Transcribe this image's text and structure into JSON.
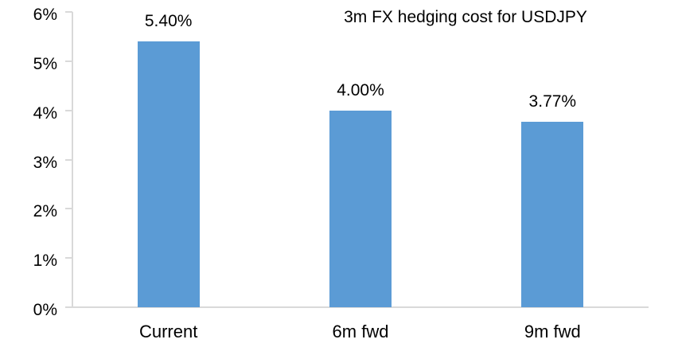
{
  "chart_data": {
    "type": "bar",
    "title": "3m FX hedging cost for USDJPY",
    "categories": [
      "Current",
      "6m fwd",
      "9m fwd"
    ],
    "values": [
      5.4,
      4.0,
      3.77
    ],
    "data_labels": [
      "5.40%",
      "4.00%",
      "3.77%"
    ],
    "xlabel": "",
    "ylabel": "",
    "ylim": [
      0,
      6
    ],
    "y_tick_values": [
      0,
      1,
      2,
      3,
      4,
      5,
      6
    ],
    "y_tick_labels": [
      "0%",
      "1%",
      "2%",
      "3%",
      "4%",
      "5%",
      "6%"
    ],
    "grid": false,
    "legend": "none",
    "colors": {
      "bar_fill": "#5B9BD5",
      "axis_line": "#D9D9D9",
      "text": "#000000",
      "background": "#FFFFFF"
    }
  }
}
